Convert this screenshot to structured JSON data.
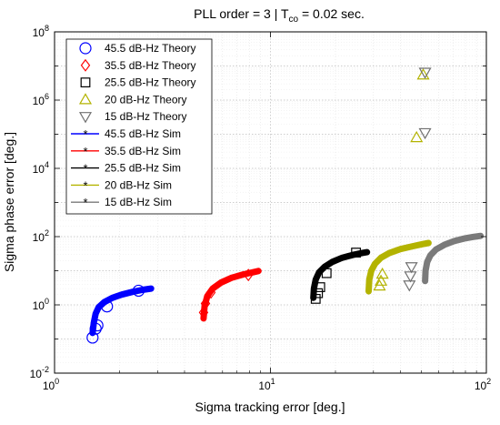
{
  "chart_data": {
    "type": "scatter",
    "title_parts": {
      "prefix": "PLL order = 3  |  T",
      "subscript": "co",
      "suffix": " = 0.02 sec."
    },
    "xlabel": "Sigma tracking error [deg.]",
    "ylabel": "Sigma phase error [deg.]",
    "xscale": "log",
    "yscale": "log",
    "xlim": [
      1,
      100
    ],
    "ylim": [
      0.01,
      100000000
    ],
    "x_ticks": [
      {
        "value": 1,
        "base": "10",
        "exp": "0"
      },
      {
        "value": 10,
        "base": "10",
        "exp": "1"
      },
      {
        "value": 100,
        "base": "10",
        "exp": "2"
      }
    ],
    "y_ticks": [
      {
        "value": 0.01,
        "base": "10",
        "exp": "-2"
      },
      {
        "value": 1,
        "base": "10",
        "exp": "0"
      },
      {
        "value": 100,
        "base": "10",
        "exp": "2"
      },
      {
        "value": 10000,
        "base": "10",
        "exp": "4"
      },
      {
        "value": 1000000,
        "base": "10",
        "exp": "6"
      },
      {
        "value": 100000000,
        "base": "10",
        "exp": "8"
      }
    ],
    "grid": true,
    "legend_position": "top-left",
    "series": [
      {
        "name": "45.5 dB-Hz Theory",
        "kind": "theory",
        "marker": "circle",
        "color": "#0000ff",
        "x": [
          1.5,
          1.55,
          1.58,
          1.75,
          2.45
        ],
        "y": [
          0.11,
          0.2,
          0.25,
          0.9,
          2.6
        ]
      },
      {
        "name": "35.5 dB-Hz Theory",
        "kind": "theory",
        "marker": "diamond",
        "color": "#ff0000",
        "x": [
          4.9,
          5.0,
          5.3,
          7.9
        ],
        "y": [
          0.6,
          1.1,
          2.3,
          7.5
        ]
      },
      {
        "name": "25.5 dB-Hz Theory",
        "kind": "theory",
        "marker": "square",
        "color": "#000000",
        "x": [
          16.2,
          16.6,
          17.0,
          18.2,
          24.9
        ],
        "y": [
          1.5,
          2.2,
          3.3,
          8.5,
          34
        ]
      },
      {
        "name": "20 dB-Hz Theory",
        "kind": "theory",
        "marker": "triangle-up",
        "color": "#b3b300",
        "x": [
          32,
          32.5,
          33,
          47.5,
          51
        ],
        "y": [
          3.6,
          5.0,
          8.0,
          80000,
          5500000
        ]
      },
      {
        "name": "15 dB-Hz Theory",
        "kind": "theory",
        "marker": "triangle-down",
        "color": "#707070",
        "x": [
          44,
          44.5,
          45,
          52,
          52
        ],
        "y": [
          3.8,
          7.0,
          13,
          110000,
          6500000
        ]
      },
      {
        "name": "45.5 dB-Hz Sim",
        "kind": "sim",
        "color": "#0000ff",
        "x": [
          1.5,
          1.52,
          1.55,
          1.6,
          1.7,
          1.85,
          2.05,
          2.3,
          2.55,
          2.8
        ],
        "y": [
          0.15,
          0.3,
          0.55,
          0.85,
          1.2,
          1.6,
          2.0,
          2.4,
          2.75,
          3.0
        ]
      },
      {
        "name": "35.5 dB-Hz Sim",
        "kind": "sim",
        "color": "#ff0000",
        "x": [
          4.9,
          4.95,
          5.1,
          5.4,
          5.9,
          6.6,
          7.5,
          8.3,
          8.8
        ],
        "y": [
          0.4,
          0.9,
          1.8,
          3.0,
          4.5,
          6.2,
          7.8,
          9.0,
          9.8
        ]
      },
      {
        "name": "25.5 dB-Hz Sim",
        "kind": "sim",
        "color": "#000000",
        "x": [
          15.8,
          15.9,
          16.2,
          16.8,
          17.8,
          19.3,
          21.5,
          24.0,
          26.5,
          28.0
        ],
        "y": [
          1.6,
          3.0,
          5.5,
          9.0,
          13,
          18,
          24,
          29,
          33,
          35
        ]
      },
      {
        "name": "20 dB-Hz Sim",
        "kind": "sim",
        "color": "#b3b300",
        "x": [
          28.5,
          28.7,
          29.3,
          30.5,
          32.5,
          35.5,
          40,
          45.5,
          50.5,
          54
        ],
        "y": [
          2.5,
          5.5,
          10,
          16,
          24,
          33,
          43,
          52,
          60,
          65
        ]
      },
      {
        "name": "15 dB-Hz Sim",
        "kind": "sim",
        "color": "#7a7a7a",
        "x": [
          52,
          52.3,
          53.2,
          55,
          58.5,
          64,
          71,
          79,
          87,
          94
        ],
        "y": [
          5,
          10,
          18,
          28,
          42,
          58,
          74,
          88,
          98,
          105
        ]
      }
    ]
  }
}
